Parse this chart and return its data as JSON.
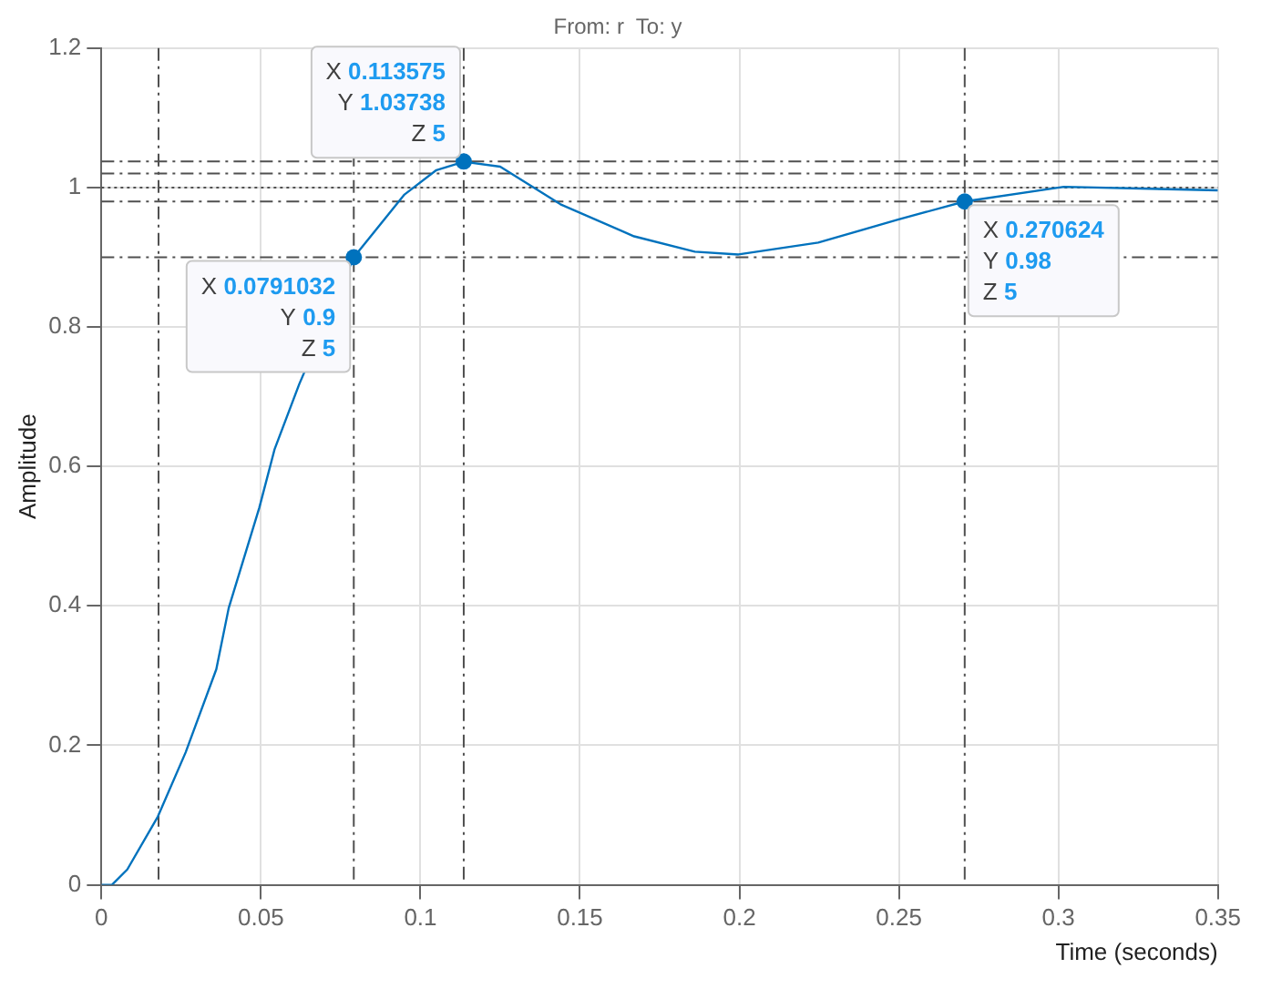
{
  "chart_data": {
    "type": "line",
    "title": "From: r  To: y",
    "xlabel": "Time (seconds)",
    "ylabel": "Amplitude",
    "x": [
      0,
      0.0033,
      0.0081,
      0.0177,
      0.0264,
      0.036,
      0.0399,
      0.0495,
      0.0543,
      0.062,
      0.0791,
      0.095,
      0.105,
      0.1136,
      0.125,
      0.1439,
      0.167,
      0.186,
      0.1997,
      0.2247,
      0.2497,
      0.2706,
      0.3017,
      0.35
    ],
    "series": [
      {
        "color": "#0072bd",
        "values": [
          0,
          0,
          0.022,
          0.098,
          0.19,
          0.309,
          0.397,
          0.541,
          0.625,
          0.718,
          0.9,
          0.99,
          1.025,
          1.037,
          1.03,
          0.976,
          0.93,
          0.908,
          0.904,
          0.921,
          0.954,
          0.98,
          1.001,
          0.996
        ]
      }
    ],
    "xlim": [
      0,
      0.35
    ],
    "xticks": [
      0,
      0.05,
      0.1,
      0.15,
      0.2,
      0.25,
      0.3,
      0.35
    ],
    "ylim": [
      0,
      1.2
    ],
    "yticks": [
      0,
      0.2,
      0.4,
      0.6,
      0.8,
      1,
      1.2
    ],
    "grid": true,
    "legend": false,
    "marker": "none",
    "line_style": "solid",
    "ref_lines": [
      {
        "axis": "y",
        "value": 1.03738,
        "color": "#505050",
        "line_style": "dashed"
      },
      {
        "axis": "y",
        "value": 1.02,
        "color": "#505050",
        "line_style": "dashed"
      },
      {
        "axis": "y",
        "value": 1,
        "color": "#505050",
        "line_style": "dotted"
      },
      {
        "axis": "y",
        "value": 0.98,
        "color": "#505050",
        "line_style": "dashed"
      },
      {
        "axis": "y",
        "value": 0.9,
        "color": "#505050",
        "line_style": "dashed"
      },
      {
        "axis": "x",
        "value": 0.0179,
        "color": "#505050",
        "line_style": "dashed"
      },
      {
        "axis": "x",
        "value": 0.0791032,
        "color": "#505050",
        "line_style": "dashed"
      },
      {
        "axis": "x",
        "value": 0.113575,
        "color": "#505050",
        "line_style": "dashed"
      },
      {
        "axis": "x",
        "value": 0.270624,
        "color": "#505050",
        "line_style": "dashed"
      }
    ],
    "annotations": [
      {
        "text": "X 0.0791032\nY 0.9\nZ 5",
        "x": 0.0791032,
        "y": 0.9
      },
      {
        "text": "X 0.113575\nY 1.03738\nZ 5",
        "x": 0.113575,
        "y": 1.03738
      },
      {
        "text": "X 0.270624\nY 0.98\nZ 5",
        "x": 0.270624,
        "y": 0.98
      }
    ]
  }
}
